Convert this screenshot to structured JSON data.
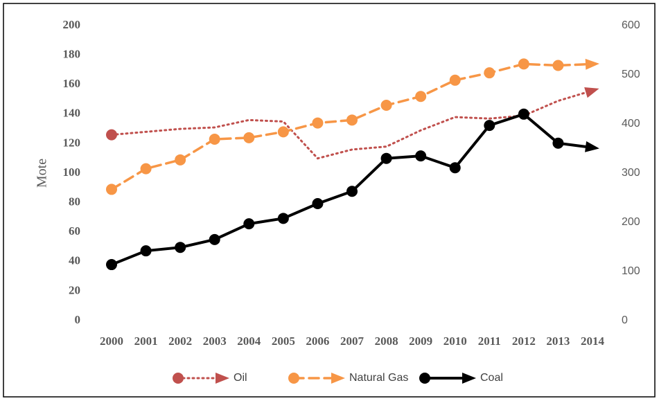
{
  "chart_data": {
    "type": "line",
    "y_label": "Mote",
    "categories": [
      "2000",
      "2001",
      "2002",
      "2003",
      "2004",
      "2005",
      "2006",
      "2007",
      "2008",
      "2009",
      "2010",
      "2011",
      "2012",
      "2013",
      "2014"
    ],
    "ylim": [
      0,
      200
    ],
    "yticks": [
      0,
      20,
      40,
      60,
      80,
      100,
      120,
      140,
      160,
      180,
      200
    ],
    "y2lim": [
      0,
      600
    ],
    "y2ticks": [
      0,
      100,
      200,
      300,
      400,
      500,
      600
    ],
    "series": [
      {
        "name": "Oil",
        "color": "#c0504d",
        "line_style": "dotted",
        "markers": false,
        "values": [
          126,
          128,
          130,
          131,
          136,
          135,
          110,
          116,
          118,
          129,
          138,
          137,
          139,
          149,
          156
        ]
      },
      {
        "name": "Natural Gas",
        "color": "#f79646",
        "line_style": "dashed",
        "markers": true,
        "values": [
          89,
          103,
          109,
          123,
          124,
          128,
          134,
          136,
          146,
          152,
          163,
          168,
          174,
          173,
          174
        ]
      },
      {
        "name": "Coal",
        "color": "#000000",
        "line_style": "solid",
        "markers": true,
        "axis": "y2",
        "values": [
          114,
          142,
          149,
          165,
          197,
          208,
          238,
          263,
          330,
          335,
          311,
          397,
          420,
          361,
          352
        ]
      }
    ]
  }
}
